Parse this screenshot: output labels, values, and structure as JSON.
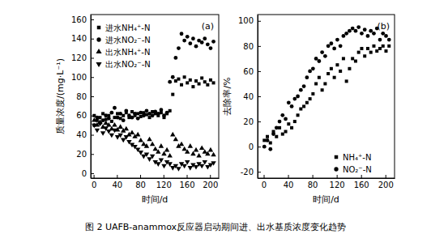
{
  "chart_data": [
    {
      "type": "scatter",
      "title": "(a)",
      "x_label": "时间/d",
      "y_label": "质量浓度/(mg·L⁻¹)",
      "xlim": [
        -5,
        215
      ],
      "ylim": [
        -5,
        165
      ],
      "xticks": [
        0,
        40,
        80,
        120,
        160,
        200
      ],
      "yticks": [
        0,
        20,
        40,
        60,
        80,
        100,
        120,
        140,
        160
      ],
      "legend": "top-left",
      "x": [
        1,
        6,
        11,
        16,
        21,
        26,
        31,
        36,
        41,
        46,
        51,
        56,
        61,
        66,
        71,
        76,
        81,
        86,
        91,
        96,
        101,
        106,
        111,
        116,
        121,
        126,
        131,
        136,
        141,
        146,
        151,
        156,
        161,
        166,
        171,
        176,
        181,
        186,
        191,
        196,
        201,
        206
      ],
      "series": [
        {
          "name": "进水NH₄⁺-N",
          "color": "#000000",
          "marker": "square",
          "values": [
            60,
            55,
            58,
            62,
            56,
            60,
            54,
            58,
            62,
            57,
            60,
            63,
            58,
            64,
            60,
            62,
            59,
            63,
            61,
            58,
            64,
            62,
            60,
            63,
            58,
            62,
            65,
            82,
            96,
            98,
            92,
            100,
            94,
            97,
            90,
            96,
            93,
            99,
            95,
            92,
            97,
            94
          ]
        },
        {
          "name": "进水NO₂⁻-N",
          "color": "#000000",
          "marker": "circle",
          "values": [
            50,
            58,
            52,
            55,
            60,
            57,
            63,
            68,
            58,
            62,
            55,
            65,
            60,
            58,
            62,
            57,
            63,
            60,
            65,
            62,
            60,
            64,
            62,
            66,
            60,
            63,
            95,
            100,
            120,
            130,
            145,
            138,
            142,
            135,
            140,
            132,
            138,
            136,
            140,
            134,
            130,
            137
          ]
        },
        {
          "name": "出水NH₄⁺-N",
          "color": "#000000",
          "marker": "triangle-up",
          "values": [
            55,
            50,
            53,
            48,
            52,
            50,
            46,
            50,
            45,
            48,
            44,
            46,
            40,
            42,
            38,
            40,
            34,
            30,
            28,
            35,
            30,
            25,
            22,
            28,
            20,
            24,
            18,
            40,
            35,
            28,
            30,
            25,
            22,
            28,
            20,
            24,
            18,
            26,
            22,
            20,
            24,
            19
          ]
        },
        {
          "name": "出水NO₂⁻-N",
          "color": "#000000",
          "marker": "triangle-down",
          "values": [
            50,
            45,
            52,
            42,
            47,
            44,
            40,
            45,
            38,
            40,
            35,
            38,
            33,
            30,
            28,
            25,
            22,
            18,
            20,
            15,
            18,
            12,
            10,
            14,
            8,
            12,
            10,
            6,
            8,
            5,
            10,
            8,
            12,
            6,
            9,
            7,
            10,
            8,
            12,
            7,
            9,
            11
          ]
        }
      ]
    },
    {
      "type": "scatter",
      "title": "(b)",
      "x_label": "时间/d",
      "y_label": "去除率/%",
      "xlim": [
        -10,
        215
      ],
      "ylim": [
        -25,
        105
      ],
      "xticks": [
        0,
        40,
        80,
        120,
        160,
        200
      ],
      "yticks": [
        -20,
        0,
        20,
        40,
        60,
        80,
        100
      ],
      "legend": "bottom-right",
      "x": [
        1,
        6,
        11,
        16,
        21,
        26,
        31,
        36,
        41,
        46,
        51,
        56,
        61,
        66,
        71,
        76,
        81,
        86,
        91,
        96,
        101,
        106,
        111,
        116,
        121,
        126,
        131,
        136,
        141,
        146,
        151,
        156,
        161,
        166,
        171,
        176,
        181,
        186,
        191,
        196,
        201,
        206
      ],
      "series": [
        {
          "name": "NH₄⁺-N",
          "color": "#000000",
          "marker": "square",
          "values": [
            5,
            8,
            3,
            12,
            8,
            15,
            10,
            12,
            18,
            15,
            20,
            25,
            30,
            32,
            35,
            38,
            42,
            50,
            55,
            45,
            50,
            58,
            62,
            55,
            65,
            60,
            70,
            52,
            62,
            70,
            68,
            75,
            78,
            72,
            78,
            75,
            80,
            76,
            78,
            80,
            76,
            80
          ]
        },
        {
          "name": "NO₂⁻-N",
          "color": "#000000",
          "marker": "circle",
          "values": [
            0,
            5,
            -2,
            10,
            15,
            20,
            25,
            22,
            35,
            32,
            38,
            40,
            45,
            48,
            55,
            60,
            62,
            70,
            68,
            75,
            72,
            80,
            82,
            78,
            85,
            80,
            88,
            90,
            92,
            94,
            92,
            95,
            90,
            93,
            88,
            92,
            90,
            94,
            85,
            90,
            88,
            85
          ]
        }
      ]
    }
  ],
  "caption": "图 2 UAFB-anammox反应器启动期间进、出水基质浓度变化趋势"
}
